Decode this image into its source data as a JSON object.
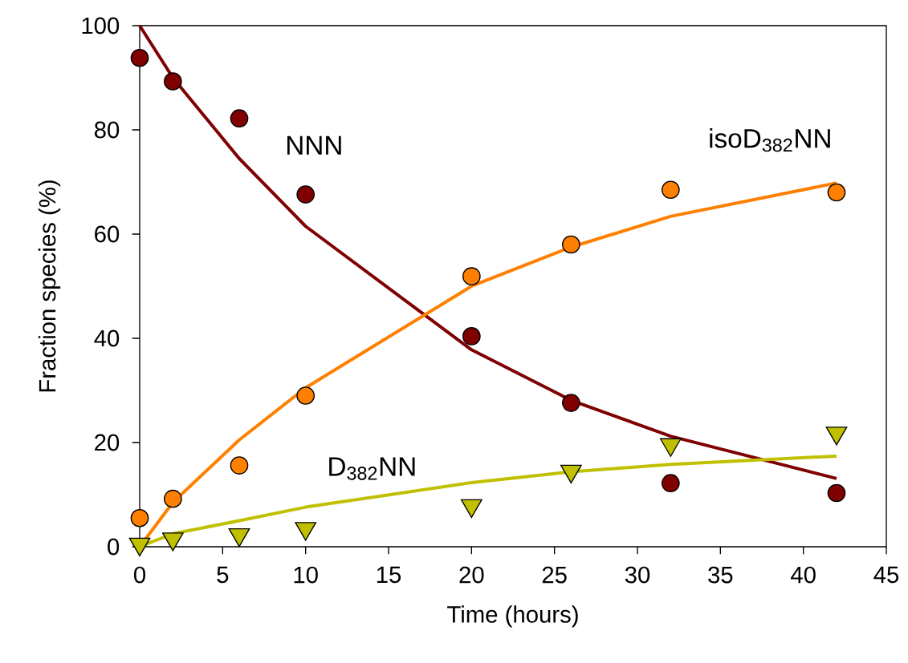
{
  "chart_data": {
    "type": "scatter",
    "xlabel": "Time (hours)",
    "ylabel": "Fraction species (%)",
    "xlim": [
      0,
      45
    ],
    "ylim": [
      0,
      100
    ],
    "xticks": [
      0,
      5,
      10,
      15,
      20,
      25,
      30,
      35,
      40,
      45
    ],
    "yticks": [
      0,
      20,
      40,
      60,
      80,
      100
    ],
    "grid": false,
    "legend": false,
    "series": [
      {
        "type": "line",
        "marker": "none",
        "color": "#7f0000",
        "x": [
          0,
          2,
          6,
          10,
          20,
          26,
          32,
          42
        ],
        "values": [
          100,
          90,
          74.5,
          61.5,
          37.8,
          28.1,
          21.2,
          13.1
        ]
      },
      {
        "type": "line",
        "marker": "none",
        "color": "#ff8000",
        "x": [
          0,
          2,
          6,
          10,
          20,
          26,
          32,
          42
        ],
        "values": [
          0,
          8.5,
          20.5,
          30.5,
          50.0,
          57.5,
          63.4,
          69.8
        ]
      },
      {
        "type": "line",
        "marker": "none",
        "color": "#c0c000",
        "x": [
          0,
          2,
          6,
          10,
          20,
          26,
          32,
          42
        ],
        "values": [
          0,
          2.5,
          5.0,
          7.6,
          12.3,
          14.4,
          15.8,
          17.4
        ]
      },
      {
        "name": "NNN",
        "marker": "circle",
        "color": "#800000",
        "x": [
          0,
          2,
          6,
          10,
          20,
          26,
          32,
          42
        ],
        "values": [
          93.8,
          89.3,
          82.2,
          67.6,
          40.4,
          27.6,
          12.2,
          10.3
        ]
      },
      {
        "name": "isoD$_{382}$NN",
        "marker": "circle",
        "color": "#ff8000",
        "x": [
          0,
          2,
          6,
          10,
          20,
          26,
          32,
          42
        ],
        "values": [
          5.5,
          9.2,
          15.6,
          29.0,
          51.9,
          58.0,
          68.5,
          68.0
        ]
      },
      {
        "name": "D$_{382}$NN",
        "marker": "triangle",
        "color": "#c0c000",
        "x": [
          0,
          2,
          6,
          10,
          20,
          26,
          32,
          42
        ],
        "values": [
          0.5,
          1.5,
          2.3,
          3.5,
          7.9,
          14.5,
          19.6,
          21.8
        ]
      }
    ]
  }
}
